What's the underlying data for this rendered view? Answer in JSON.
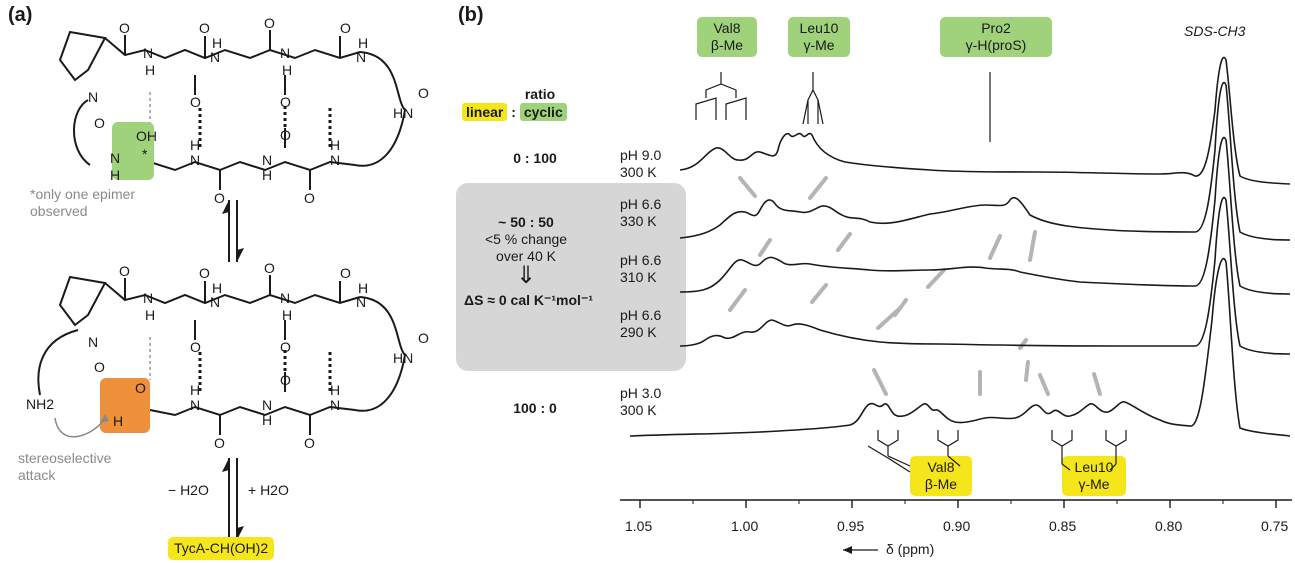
{
  "panel_a": {
    "label": "(a)",
    "top_structure": {
      "oh_label": "OH",
      "star": "*",
      "note": "*only one epimer observed"
    },
    "bottom_structure": {
      "nh2_label": "NH2",
      "cho_h": "H",
      "cho_o": "O",
      "attack_note": "stereoselective attack"
    },
    "dehydration_label": "− H2O",
    "hydration_label": "+ H2O",
    "product_label": "TycA-CH(OH)2"
  },
  "panel_b": {
    "label": "(b)",
    "ratio_title": "ratio",
    "ratio_linear": "linear",
    "ratio_colon": ":",
    "ratio_cyclic": "cyclic",
    "ratio_top": "0 : 100",
    "ratio_mid": "~ 50 : 50",
    "ratio_mid_note1": "<5 % change",
    "ratio_mid_note2": "over 40 K",
    "entropy": "ΔS ≈ 0 cal K⁻¹mol⁻¹",
    "ratio_bottom": "100 : 0",
    "top_tags": [
      {
        "line1": "Val8",
        "line2": "β-Me"
      },
      {
        "line1": "Leu10",
        "line2": "γ-Me"
      },
      {
        "line1": "Pro2",
        "line2": "γ-H(proS)"
      }
    ],
    "sds_label": "SDS-CH3",
    "bottom_tags": [
      {
        "line1": "Val8",
        "line2": "β-Me"
      },
      {
        "line1": "Leu10",
        "line2": "γ-Me"
      }
    ],
    "spectra": [
      {
        "ph": "pH 9.0",
        "temp": "300 K"
      },
      {
        "ph": "pH 6.6",
        "temp": "330 K"
      },
      {
        "ph": "pH 6.6",
        "temp": "310 K"
      },
      {
        "ph": "pH 6.6",
        "temp": "290 K"
      },
      {
        "ph": "pH 3.0",
        "temp": "300 K"
      }
    ],
    "axis": {
      "ticks": [
        "1.05",
        "1.00",
        "0.95",
        "0.90",
        "0.85",
        "0.80",
        "0.75"
      ],
      "label": "δ (ppm)"
    }
  }
}
